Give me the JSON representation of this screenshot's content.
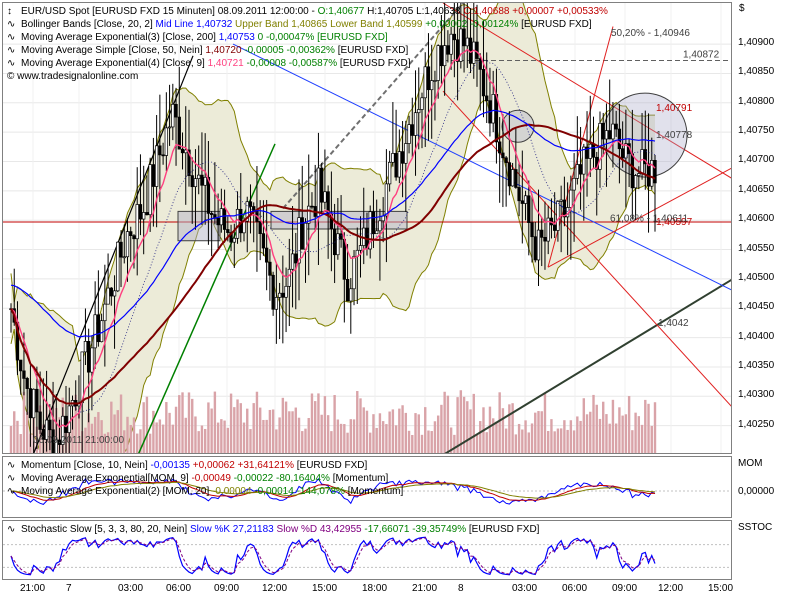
{
  "currency_symbol": "$",
  "legend": {
    "main": [
      {
        "name": "instrument",
        "parts": [
          {
            "t": "EUR/USD Spot [EURUSD FXD  15 Minuten] 08.09.2011 12:00:00 - ",
            "c": "#000000"
          },
          {
            "t": "O:1,40677",
            "c": "#008000"
          },
          {
            "t": " H:1,40705 L:1,40638 ",
            "c": "#000000"
          },
          {
            "t": "C:1,40688 +0,00007 +0,00533%",
            "c": "#c00000"
          }
        ]
      },
      {
        "name": "bollinger",
        "parts": [
          {
            "t": "Bollinger Bands [Close, 20, 2] ",
            "c": "#000000"
          },
          {
            "t": "Mid Line 1,40732",
            "c": "#0000ff"
          },
          {
            "t": " Upper Band 1,40865 Lower Band 1,40599",
            "c": "#808000"
          },
          {
            "t": " +0,00002 -0,00124%",
            "c": "#008000"
          },
          {
            "t": " [EURUSD FXD]",
            "c": "#000000"
          }
        ]
      },
      {
        "name": "ema200",
        "parts": [
          {
            "t": "Moving Average Exponential(3) [Close, 200] ",
            "c": "#000000"
          },
          {
            "t": "1,40753",
            "c": "#0000ff"
          },
          {
            "t": " 0 -0,00047% [EURUSD FXD]",
            "c": "#008000"
          }
        ]
      },
      {
        "name": "sma50",
        "parts": [
          {
            "t": "Moving Average Simple [Close, 50, Nein] ",
            "c": "#000000"
          },
          {
            "t": "1,40720",
            "c": "#800000"
          },
          {
            "t": " -0,00005 -0,00362%",
            "c": "#008000"
          },
          {
            "t": " [EURUSD FXD]",
            "c": "#000000"
          }
        ]
      },
      {
        "name": "ema9",
        "parts": [
          {
            "t": "Moving Average Exponential(4) [Close, 9] ",
            "c": "#000000"
          },
          {
            "t": "1,40721",
            "c": "#ff4080"
          },
          {
            "t": " -0,00008 -0,00587%",
            "c": "#008000"
          },
          {
            "t": " [EURUSD FXD]",
            "c": "#000000"
          }
        ]
      }
    ],
    "website": "www.tradesignalonline.com",
    "mom": [
      {
        "name": "momentum",
        "parts": [
          {
            "t": "Momentum [Close, 10, Nein] ",
            "c": "#000000"
          },
          {
            "t": "-0,00135",
            "c": "#0000ff"
          },
          {
            "t": " +0,00062 +31,64121%",
            "c": "#c00000"
          },
          {
            "t": " [EURUSD FXD]",
            "c": "#000000"
          }
        ]
      },
      {
        "name": "mom-ema9",
        "parts": [
          {
            "t": "Moving Average Exponential[MOM, 9] ",
            "c": "#000000"
          },
          {
            "t": "-0,00049",
            "c": "#c00000"
          },
          {
            "t": " -0,00022 -80,16404%",
            "c": "#008000"
          },
          {
            "t": " [Momentum]",
            "c": "#000000"
          }
        ]
      },
      {
        "name": "mom-ema20",
        "parts": [
          {
            "t": "Moving Average Exponential(2) [MOM, 20] ",
            "c": "#000000"
          },
          {
            "t": "-0,00004",
            "c": "#808000"
          },
          {
            "t": " -0,00014 -144,078%",
            "c": "#008000"
          },
          {
            "t": " [Momentum]",
            "c": "#000000"
          }
        ]
      }
    ],
    "sto": [
      {
        "name": "stochastic",
        "parts": [
          {
            "t": "Stochastic Slow [5, 3, 3, 80, 20, Nein] ",
            "c": "#000000"
          },
          {
            "t": "Slow %K 27,21183",
            "c": "#0000ff"
          },
          {
            "t": " Slow %D 43,42955",
            "c": "#800080"
          },
          {
            "t": " -17,66071 -39,35749%",
            "c": "#008000"
          },
          {
            "t": " [EURUSD FXD]",
            "c": "#000000"
          }
        ]
      }
    ]
  },
  "pane_names": {
    "mom": "MOM",
    "sto": "SSTOC"
  },
  "annotations": {
    "fib_top": "50,20% - 1,40946",
    "level_1": "1,40872",
    "level_2": "1,40791",
    "level_3": "1,40778",
    "level_4": "1,40597",
    "fib_low": "61,08% - 1,40611",
    "trend_label": "1,4042",
    "date_label": "06.09.2011 21:00:00"
  },
  "colors": {
    "ema200": "#0000ff",
    "sma50": "#800000",
    "ema9": "#ff4080",
    "boll": "#808000",
    "boll_fill": "#ecebd8",
    "momentum": "#0000ff",
    "mom_ema9": "#c00000",
    "mom_ema20": "#808000",
    "stoch_k": "#0000ff",
    "stoch_d": "#800080",
    "volume": "#d9a3a8",
    "candle": "#000000"
  },
  "chart_data": [
    {
      "type": "candlestick",
      "title": "EUR/USD Spot [EURUSD FXD 15 Minuten]",
      "ylim": [
        1.402,
        1.4097
      ],
      "y_ticks": [
        "1,40900",
        "1,40850",
        "1,40800",
        "1,40750",
        "1,40700",
        "1,40650",
        "1,40600",
        "1,40550",
        "1,40500",
        "1,40450",
        "1,40400",
        "1,40350",
        "1,40300",
        "1,40250"
      ],
      "x_ticks": [
        "21:00",
        "7",
        "03:00",
        "06:00",
        "09:00",
        "12:00",
        "15:00",
        "18:00",
        "21:00",
        "8",
        "03:00",
        "06:00",
        "09:00",
        "12:00",
        "15:00"
      ],
      "close_path": [
        1.4045,
        1.4032,
        1.4025,
        1.4022,
        1.4028,
        1.4035,
        1.4042,
        1.405,
        1.4058,
        1.4062,
        1.407,
        1.4078,
        1.4072,
        1.4065,
        1.406,
        1.4058,
        1.4062,
        1.4055,
        1.4048,
        1.405,
        1.406,
        1.4065,
        1.4058,
        1.405,
        1.4055,
        1.4062,
        1.4068,
        1.4075,
        1.4082,
        1.4088,
        1.4092,
        1.409,
        1.4085,
        1.4078,
        1.407,
        1.4062,
        1.4055,
        1.4058,
        1.4062,
        1.4068,
        1.4072,
        1.4075,
        1.407,
        1.4068,
        1.4069
      ],
      "series": [
        {
          "name": "Bollinger Bands Mid Line",
          "last": 1.40732
        },
        {
          "name": "Upper Band",
          "last": 1.40865
        },
        {
          "name": "Lower Band",
          "last": 1.40599
        },
        {
          "name": "Moving Average Exponential(3) [Close, 200]",
          "last": 1.40753
        },
        {
          "name": "Moving Average Simple [Close, 50, Nein]",
          "last": 1.4072
        },
        {
          "name": "Moving Average Exponential(4) [Close, 9]",
          "last": 1.40721
        }
      ],
      "last_close": 1.40688
    },
    {
      "type": "line",
      "title": "Momentum [Close, 10, Nein]",
      "y_ticks": [
        "0,00000"
      ],
      "series": [
        {
          "name": "Momentum",
          "last": -0.00135
        },
        {
          "name": "Moving Average Exponential[MOM, 9]",
          "last": -0.00049
        },
        {
          "name": "Moving Average Exponential(2) [MOM, 20]",
          "last": -4e-05
        }
      ]
    },
    {
      "type": "line",
      "title": "Stochastic Slow [5, 3, 3, 80, 20, Nein]",
      "series": [
        {
          "name": "Slow %K",
          "last": 27.21183
        },
        {
          "name": "Slow %D",
          "last": 43.42955
        }
      ]
    }
  ]
}
